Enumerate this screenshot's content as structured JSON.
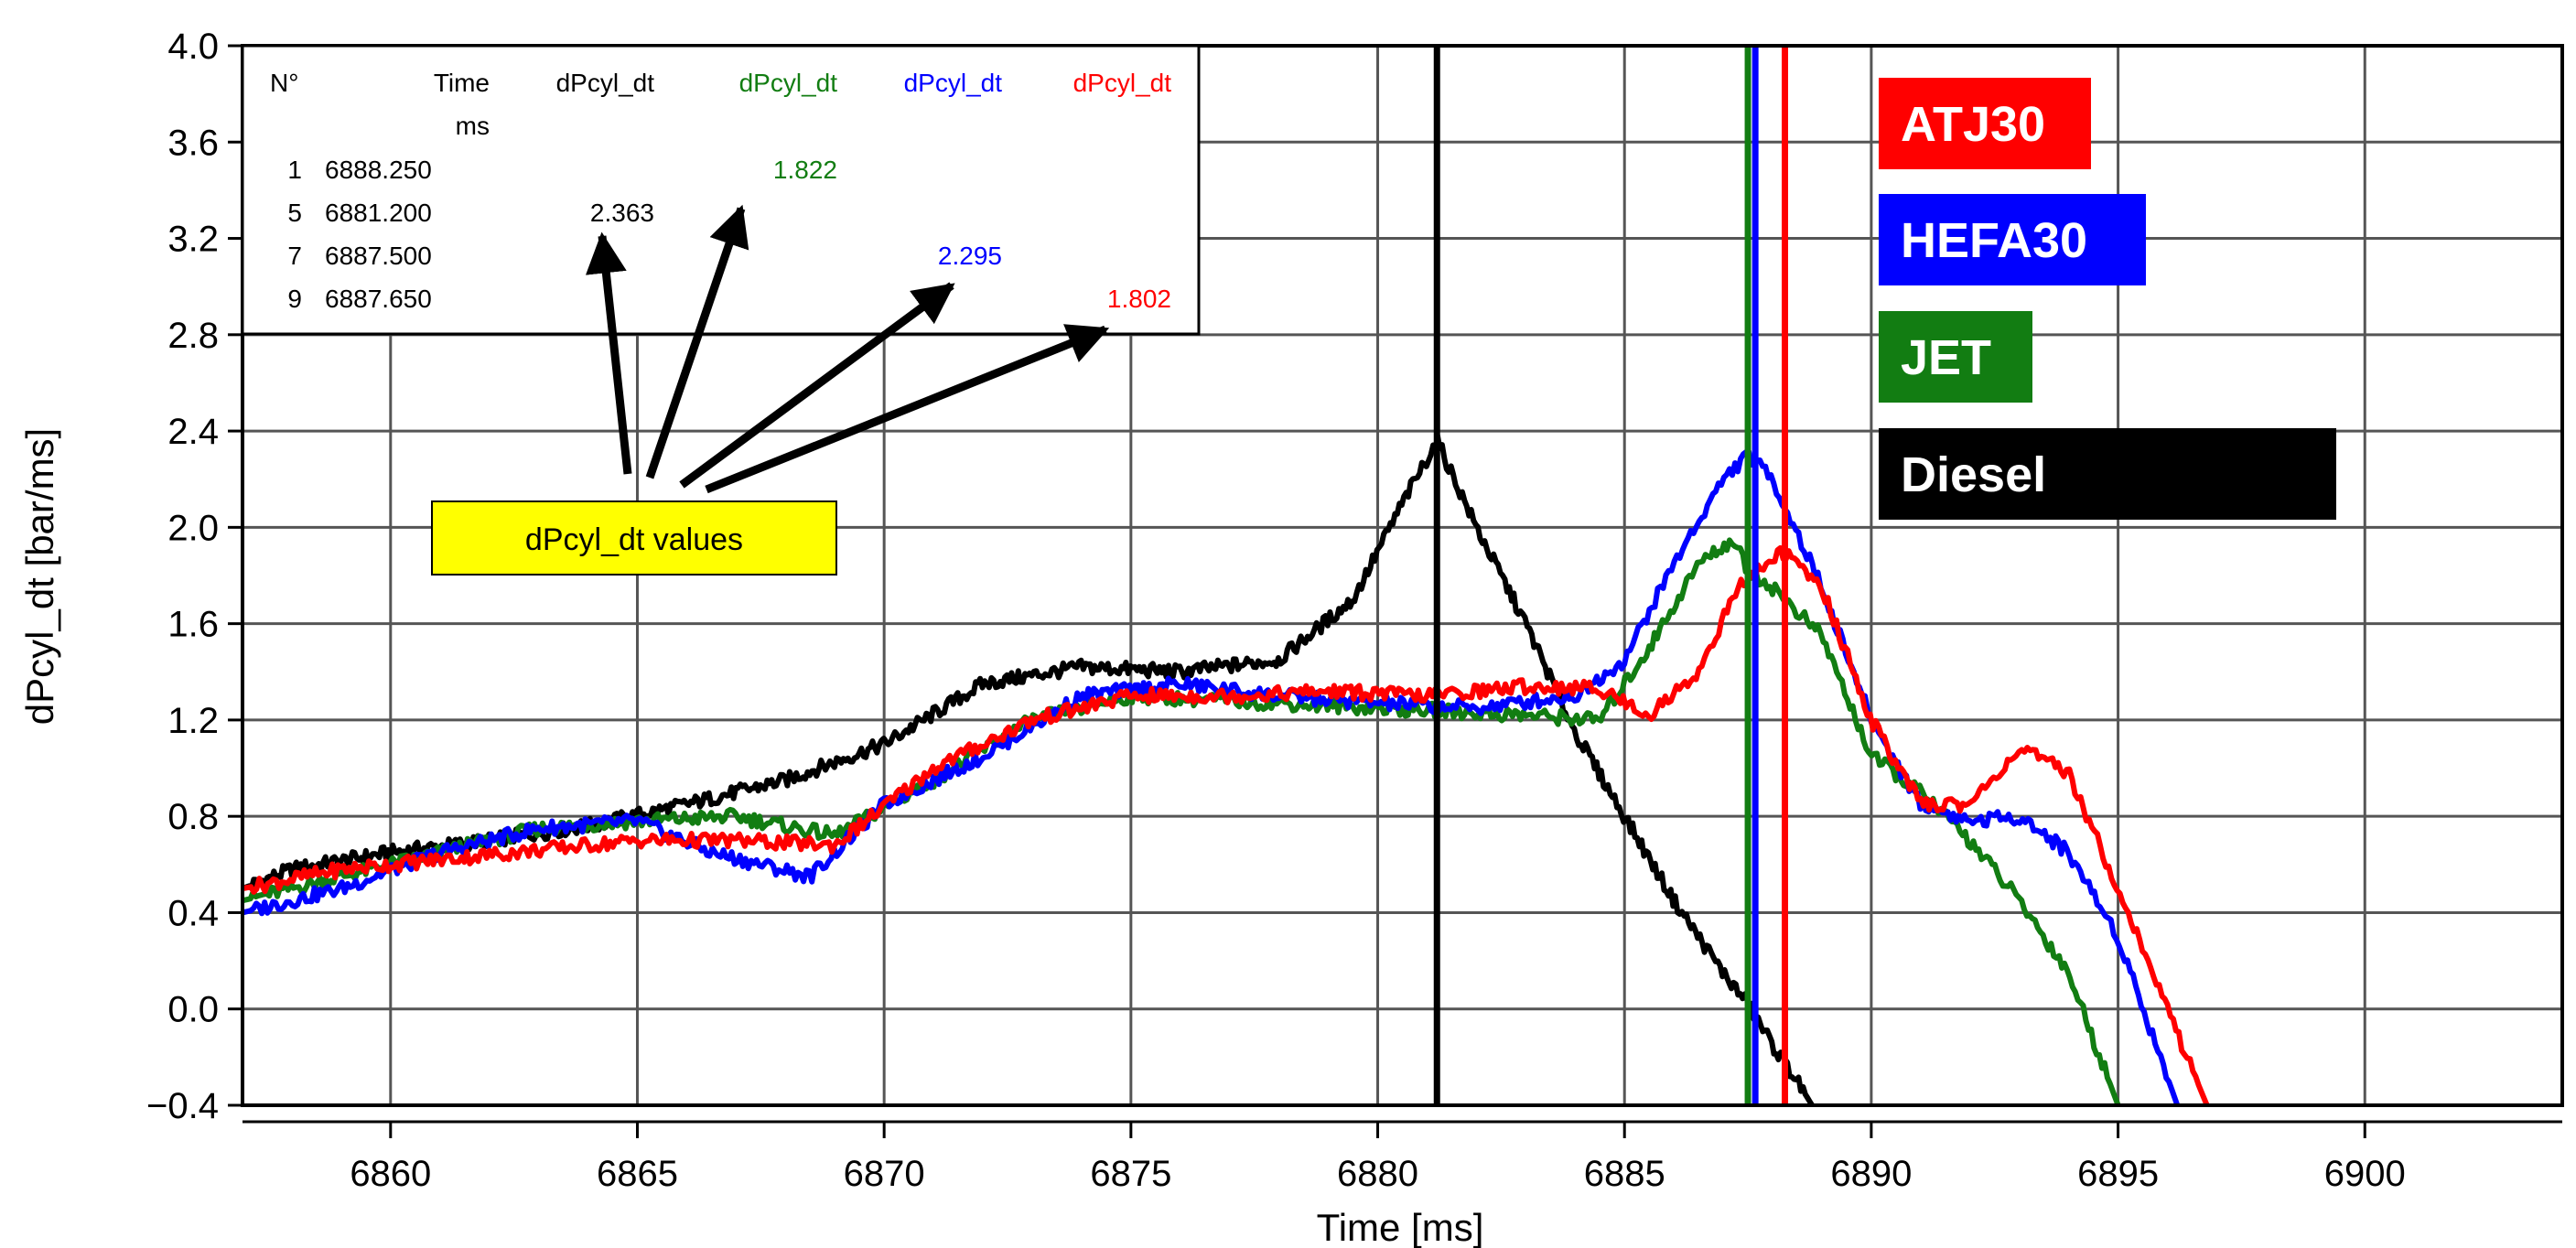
{
  "chart_data": {
    "type": "line",
    "xlabel": "Time [ms]",
    "ylabel": "dPcyl_dt [bar/ms]",
    "xlim": [
      6857,
      6904
    ],
    "ylim": [
      -0.4,
      4.0
    ],
    "x_ticks": [
      {
        "value": 6860,
        "label": "6860"
      },
      {
        "value": 6865,
        "label": "6865"
      },
      {
        "value": 6870,
        "label": "6870"
      },
      {
        "value": 6875,
        "label": "6875"
      },
      {
        "value": 6880,
        "label": "6880"
      },
      {
        "value": 6885,
        "label": "6885"
      },
      {
        "value": 6890,
        "label": "6890"
      },
      {
        "value": 6895,
        "label": "6895"
      },
      {
        "value": 6900,
        "label": "6900"
      }
    ],
    "y_ticks": [
      {
        "value": 4.0,
        "label": "4.0"
      },
      {
        "value": 3.6,
        "label": "3.6"
      },
      {
        "value": 3.2,
        "label": "3.2"
      },
      {
        "value": 2.8,
        "label": "2.8"
      },
      {
        "value": 2.4,
        "label": "2.4"
      },
      {
        "value": 2.0,
        "label": "2.0"
      },
      {
        "value": 1.6,
        "label": "1.6"
      },
      {
        "value": 1.2,
        "label": "1.2"
      },
      {
        "value": 0.8,
        "label": "0.8"
      },
      {
        "value": 0.4,
        "label": "0.4"
      },
      {
        "value": 0.0,
        "label": "0.0"
      },
      {
        "value": -0.4,
        "label": "−0.4"
      }
    ],
    "grid": true,
    "series": [
      {
        "name": "Diesel",
        "color": "#000000",
        "x": [
          6857,
          6858,
          6860,
          6862,
          6864,
          6866,
          6868,
          6870,
          6872,
          6874,
          6876,
          6878,
          6879.5,
          6880.5,
          6881.2,
          6882,
          6883,
          6884,
          6885,
          6886,
          6887,
          6887.5,
          6888,
          6888.5,
          6888.8
        ],
        "y": [
          0.5,
          0.58,
          0.65,
          0.7,
          0.76,
          0.85,
          0.95,
          1.1,
          1.35,
          1.42,
          1.4,
          1.45,
          1.7,
          2.1,
          2.36,
          2.0,
          1.6,
          1.15,
          0.8,
          0.45,
          0.15,
          0.02,
          -0.15,
          -0.3,
          -0.4
        ]
      },
      {
        "name": "JET",
        "color": "#127d12",
        "x": [
          6857,
          6859,
          6861,
          6863,
          6865,
          6867,
          6869,
          6871,
          6873,
          6875,
          6877,
          6879,
          6881,
          6883,
          6884.5,
          6885.5,
          6886.5,
          6887.2,
          6887.5,
          6888,
          6889,
          6890,
          6891,
          6892,
          6893,
          6894,
          6895
        ],
        "y": [
          0.45,
          0.55,
          0.65,
          0.75,
          0.78,
          0.8,
          0.72,
          0.95,
          1.2,
          1.3,
          1.28,
          1.26,
          1.24,
          1.22,
          1.2,
          1.5,
          1.85,
          1.95,
          1.82,
          1.75,
          1.55,
          1.05,
          0.9,
          0.7,
          0.45,
          0.15,
          -0.4
        ]
      },
      {
        "name": "HEFA30",
        "color": "#0000ff",
        "x": [
          6857,
          6859,
          6861,
          6863,
          6865,
          6866.5,
          6868.5,
          6870,
          6872,
          6874,
          6876,
          6878,
          6880,
          6882,
          6884,
          6885,
          6886,
          6887,
          6887.5,
          6888,
          6889,
          6890,
          6891,
          6892,
          6893,
          6894,
          6895,
          6896.2
        ],
        "y": [
          0.4,
          0.5,
          0.65,
          0.75,
          0.78,
          0.65,
          0.55,
          0.85,
          1.05,
          1.3,
          1.35,
          1.3,
          1.27,
          1.25,
          1.3,
          1.45,
          1.85,
          2.2,
          2.3,
          2.2,
          1.75,
          1.2,
          0.85,
          0.78,
          0.8,
          0.65,
          0.3,
          -0.4
        ]
      },
      {
        "name": "ATJ30",
        "color": "#ff0000",
        "x": [
          6857,
          6859,
          6861,
          6863,
          6865,
          6867,
          6869,
          6871,
          6873,
          6875,
          6877,
          6879,
          6881,
          6883,
          6884.5,
          6885.5,
          6886.5,
          6887.3,
          6888.2,
          6889,
          6890,
          6891,
          6892,
          6893,
          6894,
          6895,
          6896,
          6896.8
        ],
        "y": [
          0.5,
          0.58,
          0.62,
          0.66,
          0.7,
          0.7,
          0.68,
          1.0,
          1.2,
          1.3,
          1.3,
          1.32,
          1.3,
          1.34,
          1.33,
          1.22,
          1.4,
          1.75,
          1.9,
          1.75,
          1.2,
          0.85,
          0.85,
          1.08,
          0.98,
          0.5,
          0.0,
          -0.4
        ]
      }
    ],
    "cursors": [
      {
        "x": 6881.2,
        "color": "#000000"
      },
      {
        "x": 6887.5,
        "color": "#127d12"
      },
      {
        "x": 6887.65,
        "color": "#0000ff"
      },
      {
        "x": 6888.25,
        "color": "#ff0000"
      }
    ],
    "legend": [
      {
        "label": "ATJ30",
        "color": "#ff0000"
      },
      {
        "label": "HEFA30",
        "color": "#0000ff"
      },
      {
        "label": "JET",
        "color": "#127d12"
      },
      {
        "label": "Diesel",
        "color": "#000000"
      }
    ],
    "table": {
      "headers": [
        "N°",
        "Time",
        "dPcyl_dt",
        "dPcyl_dt",
        "dPcyl_dt",
        "dPcyl_dt"
      ],
      "header_colors": [
        "#000000",
        "#000000",
        "#000000",
        "#127d12",
        "#0000ff",
        "#ff0000"
      ],
      "units": [
        "",
        "ms",
        "",
        "",
        "",
        ""
      ],
      "rows": [
        {
          "n": "1",
          "time": "6888.250",
          "value": "1.822",
          "col": 3,
          "color": "#127d12"
        },
        {
          "n": "5",
          "time": "6881.200",
          "value": "2.363",
          "col": 2,
          "color": "#000000"
        },
        {
          "n": "7",
          "time": "6887.500",
          "value": "2.295",
          "col": 4,
          "color": "#0000ff"
        },
        {
          "n": "9",
          "time": "6887.650",
          "value": "1.802",
          "col": 5,
          "color": "#ff0000"
        }
      ]
    },
    "annotation": {
      "text": "dPcyl_dt values",
      "background": "#ffff00"
    }
  }
}
